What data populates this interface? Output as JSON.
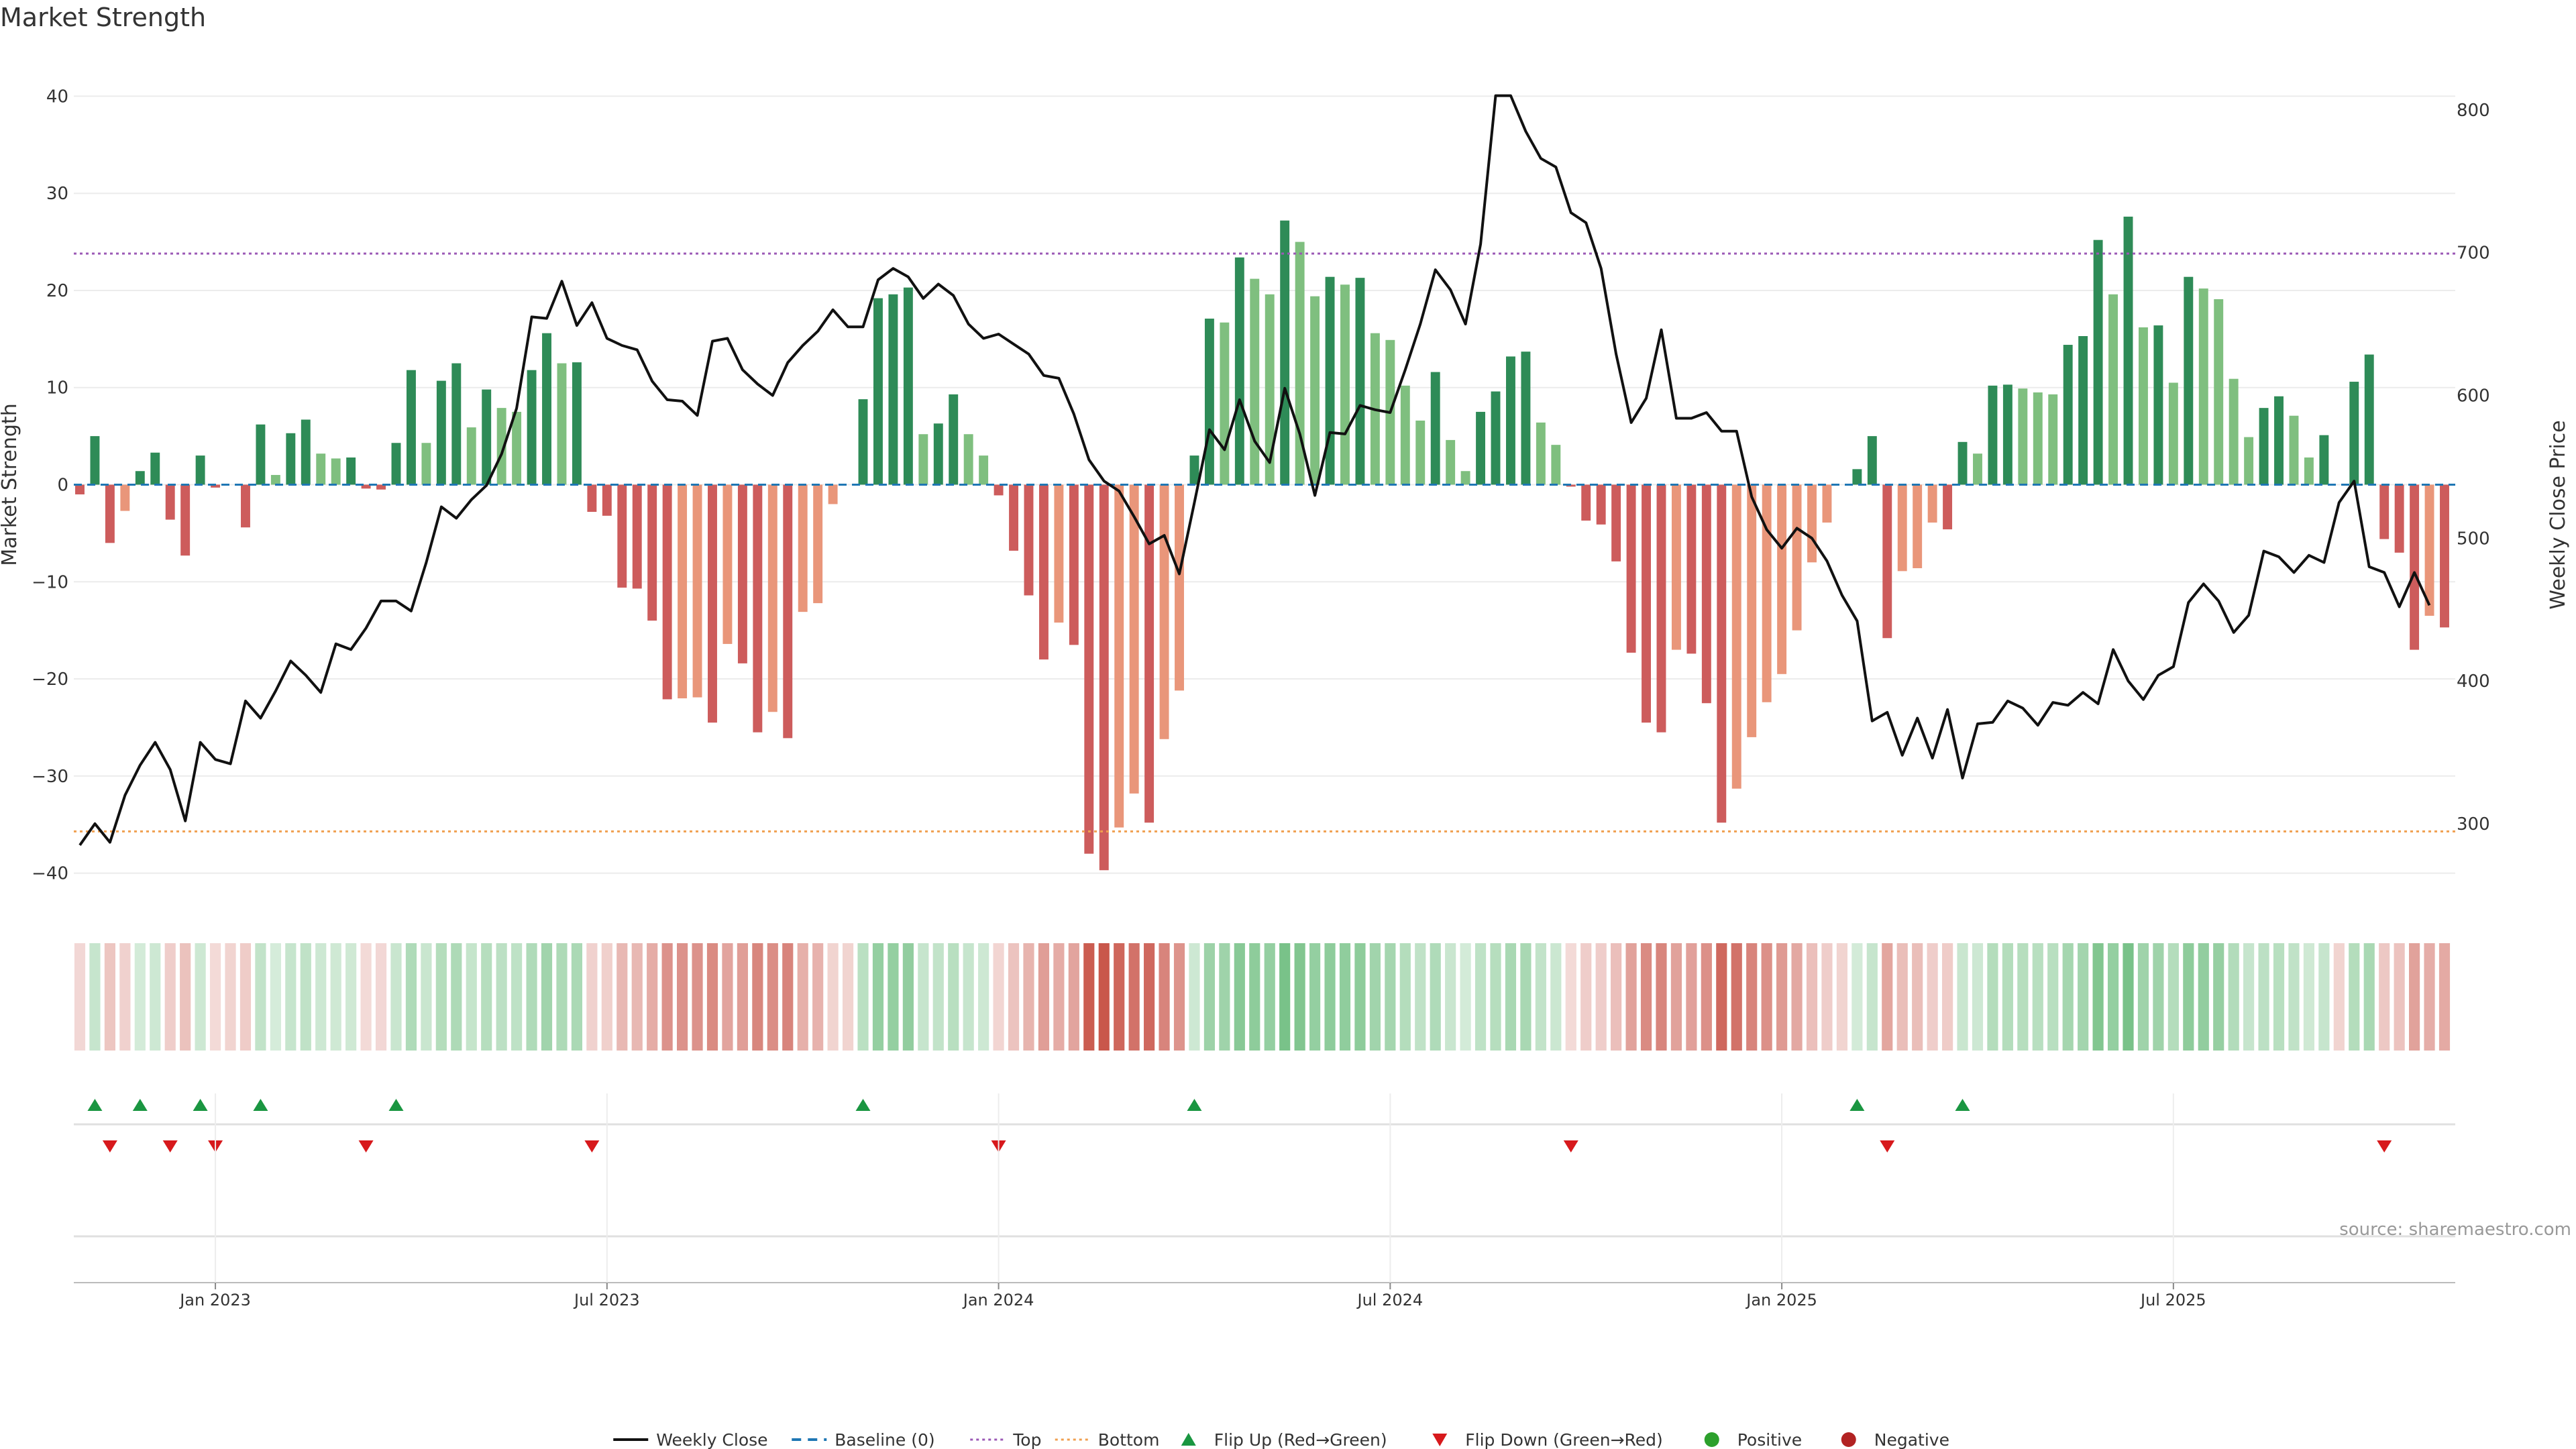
{
  "title": "Market Strength",
  "source": "source: sharemaestro.com",
  "colors": {
    "pos_strong": "#2e8b57",
    "pos_light": "#7fbf7f",
    "neg_strong": "#cd5c5c",
    "neg_light": "#e9967a",
    "close_line": "#111111",
    "top_line": "#9b59b6",
    "bottom_line": "#f0a050",
    "baseline": "#1f77b4",
    "flip_up": "#1a9641",
    "flip_down": "#d7191c",
    "positive_dot": "#2ca02c",
    "negative_dot": "#b22222"
  },
  "chart_data": {
    "type": "bar+line",
    "title": "Market Strength",
    "ylabel_left": "Market Strength",
    "ylabel_right": "Weekly Close Price",
    "ylim_left": [
      -43,
      43
    ],
    "yticks_left": [
      -40,
      -30,
      -20,
      -10,
      0,
      10,
      20,
      30,
      40
    ],
    "ylim_right": [
      245,
      830
    ],
    "yticks_right": [
      300,
      400,
      500,
      600,
      700,
      800
    ],
    "top_level": 23.8,
    "bottom_level": -35.7,
    "baseline": 0,
    "x_labels": [
      {
        "label": "Jan 2023",
        "week": 9
      },
      {
        "label": "Jul 2023",
        "week": 35
      },
      {
        "label": "Jan 2024",
        "week": 61
      },
      {
        "label": "Jul 2024",
        "week": 87
      },
      {
        "label": "Jan 2025",
        "week": 113
      },
      {
        "label": "Jul 2025",
        "week": 139
      }
    ],
    "strength": [
      -1,
      5,
      -6,
      -2.7,
      1.4,
      3.3,
      -3.6,
      -7.3,
      3,
      -0.3,
      0,
      -4.4,
      6.2,
      1,
      5.3,
      6.7,
      3.2,
      2.7,
      2.8,
      -0.4,
      -0.5,
      4.3,
      11.8,
      4.3,
      10.7,
      12.5,
      5.9,
      9.8,
      7.9,
      7.5,
      11.8,
      15.6,
      12.5,
      12.6,
      -2.8,
      -3.2,
      -10.6,
      -10.7,
      -14,
      -22.1,
      -22,
      -21.9,
      -24.5,
      -16.4,
      -18.4,
      -25.5,
      -23.4,
      -26.1,
      -13.1,
      -12.2,
      -2,
      0,
      8.8,
      19.2,
      19.6,
      20.3,
      5.2,
      6.3,
      9.3,
      5.2,
      3,
      -1.1,
      -6.8,
      -11.4,
      -18,
      -14.2,
      -16.5,
      -38,
      -39.7,
      -35.3,
      -31.8,
      -34.8,
      -26.2,
      -21.2,
      3,
      17.1,
      16.7,
      23.4,
      21.2,
      19.6,
      27.2,
      25,
      19.4,
      21.4,
      20.6,
      21.3,
      15.6,
      14.9,
      10.2,
      6.6,
      11.6,
      4.6,
      1.4,
      7.5,
      9.6,
      13.2,
      13.7,
      6.4,
      4.1,
      -0.2,
      -3.7,
      -4.1,
      -7.9,
      -17.3,
      -24.5,
      -25.5,
      -17,
      -17.4,
      -22.5,
      -34.8,
      -31.3,
      -26,
      -22.4,
      -19.5,
      -15,
      -8,
      -3.9,
      0,
      1.6,
      5,
      -15.8,
      -8.9,
      -8.6,
      -3.9,
      -4.6,
      4.4,
      3.2,
      10.2,
      10.3,
      9.9,
      9.5,
      9.3,
      14.4,
      15.3,
      25.2,
      19.6,
      27.6,
      16.2,
      16.4,
      10.5,
      21.4,
      20.2,
      19.1,
      10.9,
      4.9,
      7.9,
      9.1,
      7.1,
      2.8,
      5.1,
      0,
      10.6,
      13.4,
      -5.6,
      -7,
      -17,
      -13.5,
      -14.7
    ],
    "close": [
      285,
      300,
      287,
      320,
      341,
      357,
      338,
      302,
      357,
      345,
      342,
      386,
      374,
      393,
      414,
      404,
      392,
      426,
      422,
      437,
      456,
      456,
      449,
      483,
      522,
      514,
      527,
      537,
      559,
      591,
      655,
      654,
      680,
      649,
      665,
      640,
      635,
      632,
      610,
      597,
      596,
      586,
      638,
      640,
      618,
      608,
      600,
      623,
      635,
      645,
      660,
      648,
      648,
      681,
      689,
      683,
      668,
      678,
      670,
      650,
      640,
      643,
      636,
      629,
      614,
      612,
      587,
      555,
      540,
      533,
      515,
      496,
      502,
      475,
      525,
      576,
      562,
      597,
      568,
      553,
      605,
      573,
      530,
      574,
      573,
      593,
      590,
      588,
      618,
      650,
      688,
      674,
      650,
      706,
      810,
      810,
      785,
      766,
      760,
      728,
      721,
      689,
      629,
      581,
      598,
      646,
      584,
      584,
      588,
      575,
      575,
      529,
      506,
      493,
      507,
      500,
      484,
      460,
      442,
      372,
      378,
      348,
      374,
      346,
      380,
      332,
      370,
      371,
      386,
      381,
      369,
      385,
      383,
      392,
      384,
      422,
      400,
      387,
      404,
      410,
      455,
      468,
      456,
      434,
      446,
      491,
      487,
      476,
      488,
      483,
      525,
      540,
      480,
      476,
      452,
      476,
      453
    ]
  },
  "legend": [
    {
      "label": "Weekly Close",
      "kind": "line-solid"
    },
    {
      "label": "Baseline (0)",
      "kind": "line-dashed"
    },
    {
      "label": "Top",
      "kind": "line-dotted-top"
    },
    {
      "label": "Bottom",
      "kind": "line-dotted-bottom"
    },
    {
      "label": "Flip Up (Red→Green)",
      "kind": "tri-up"
    },
    {
      "label": "Flip Down (Green→Red)",
      "kind": "tri-down"
    },
    {
      "label": "Positive",
      "kind": "dot-pos"
    },
    {
      "label": "Negative",
      "kind": "dot-neg"
    }
  ]
}
